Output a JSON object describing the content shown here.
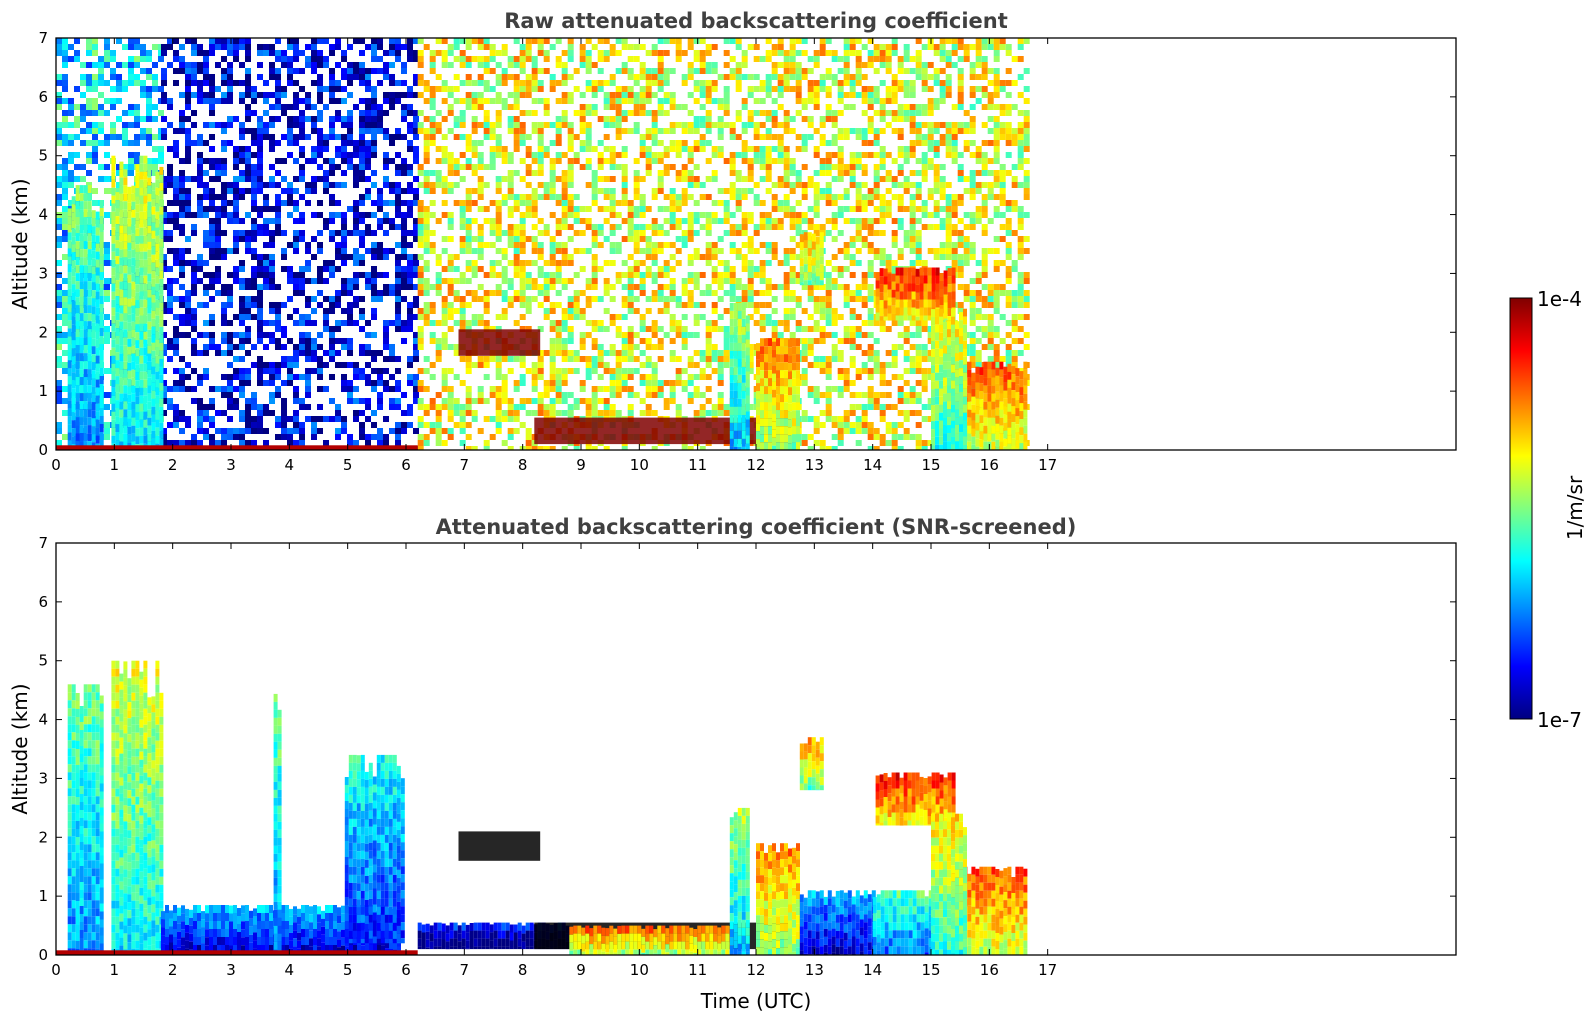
{
  "chart_data": [
    {
      "type": "heatmap",
      "title": "Raw attenuated backscattering coefficient",
      "xlabel": "",
      "ylabel": "Altitude (km)",
      "xlim": [
        0,
        24
      ],
      "ylim": [
        0,
        7
      ],
      "xticks": [
        "0",
        "1",
        "2",
        "3",
        "4",
        "5",
        "6",
        "7",
        "8",
        "9",
        "10",
        "11",
        "12",
        "13",
        "14",
        "15",
        "16",
        "17"
      ],
      "yticks": [
        "0",
        "1",
        "2",
        "3",
        "4",
        "5",
        "6",
        "7"
      ],
      "data_end_time": 16.6,
      "features": [
        {
          "kind": "noise_background",
          "x": [
            0,
            1.8
          ],
          "level": 0.35
        },
        {
          "kind": "noise_background",
          "x": [
            1.8,
            6.2
          ],
          "level": 0.1
        },
        {
          "kind": "noise_background",
          "x": [
            6.2,
            16.6
          ],
          "level": 0.6
        },
        {
          "kind": "aerosol_column",
          "x": [
            0.2,
            0.75
          ],
          "y": [
            0,
            4.5
          ],
          "level": 0.5
        },
        {
          "kind": "aerosol_column",
          "x": [
            0.95,
            1.8
          ],
          "y": [
            0,
            5
          ],
          "level": 0.6
        },
        {
          "kind": "boundary_layer",
          "x": [
            0,
            6.2
          ],
          "y": [
            0,
            0.08
          ],
          "level": 0.95
        },
        {
          "kind": "cloud_layer",
          "x": [
            6.9,
            8.3
          ],
          "y": [
            1.6,
            2.05
          ],
          "level": 1.0
        },
        {
          "kind": "cloud_layer",
          "x": [
            8.2,
            12.6
          ],
          "y": [
            0.1,
            0.55
          ],
          "level": 1.0
        },
        {
          "kind": "aerosol_column",
          "x": [
            11.55,
            11.85
          ],
          "y": [
            0,
            2.5
          ],
          "level": 0.55
        },
        {
          "kind": "aerosol_column",
          "x": [
            12.0,
            12.75
          ],
          "y": [
            0,
            1.9
          ],
          "level": 0.75
        },
        {
          "kind": "aerosol_column",
          "x": [
            12.75,
            13.1
          ],
          "y": [
            2.8,
            3.7
          ],
          "level": 0.7
        },
        {
          "kind": "aerosol_column",
          "x": [
            14.05,
            15.4
          ],
          "y": [
            2.2,
            3.1
          ],
          "level": 0.85
        },
        {
          "kind": "aerosol_column",
          "x": [
            15.35,
            16.6
          ],
          "y": [
            0,
            1.5
          ],
          "level": 0.8
        },
        {
          "kind": "aerosol_column",
          "x": [
            15.0,
            15.6
          ],
          "y": [
            0,
            2.4
          ],
          "level": 0.65
        }
      ]
    },
    {
      "type": "heatmap",
      "title": "Attenuated backscattering coefficient (SNR-screened)",
      "xlabel": "Time (UTC)",
      "ylabel": "Altitude (km)",
      "xlim": [
        0,
        24
      ],
      "ylim": [
        0,
        7
      ],
      "xticks": [
        "0",
        "1",
        "2",
        "3",
        "4",
        "5",
        "6",
        "7",
        "8",
        "9",
        "10",
        "11",
        "12",
        "13",
        "14",
        "15",
        "16",
        "17"
      ],
      "yticks": [
        "0",
        "1",
        "2",
        "3",
        "4",
        "5",
        "6",
        "7"
      ],
      "data_end_time": 16.6,
      "features": [
        {
          "kind": "aerosol_column",
          "x": [
            0.2,
            0.75
          ],
          "y": [
            0,
            4.6
          ],
          "level": 0.5
        },
        {
          "kind": "aerosol_column",
          "x": [
            0.95,
            1.8
          ],
          "y": [
            0,
            5
          ],
          "level": 0.6
        },
        {
          "kind": "aerosol_column",
          "x": [
            1.8,
            5.9
          ],
          "y": [
            0,
            0.85
          ],
          "level": 0.3
        },
        {
          "kind": "aerosol_column",
          "x": [
            3.73,
            3.8
          ],
          "y": [
            0,
            4.5
          ],
          "level": 0.5
        },
        {
          "kind": "aerosol_column",
          "x": [
            4.95,
            5.95
          ],
          "y": [
            0.2,
            3.4
          ],
          "level": 0.4
        },
        {
          "kind": "boundary_layer",
          "x": [
            0,
            6.2
          ],
          "y": [
            0,
            0.08
          ],
          "level": 0.95
        },
        {
          "kind": "cloud_layer",
          "x": [
            6.9,
            8.3
          ],
          "y": [
            1.6,
            2.1
          ],
          "level": 1.0
        },
        {
          "kind": "aerosol_column",
          "x": [
            6.2,
            8.8
          ],
          "y": [
            0.1,
            0.55
          ],
          "level": 0.15
        },
        {
          "kind": "cloud_layer",
          "x": [
            8.2,
            12.6
          ],
          "y": [
            0.1,
            0.55
          ],
          "level": 1.0
        },
        {
          "kind": "aerosol_column",
          "x": [
            8.8,
            11.6
          ],
          "y": [
            0,
            0.5
          ],
          "level": 0.75
        },
        {
          "kind": "aerosol_column",
          "x": [
            11.55,
            11.85
          ],
          "y": [
            0,
            2.5
          ],
          "level": 0.55
        },
        {
          "kind": "aerosol_column",
          "x": [
            12.0,
            12.75
          ],
          "y": [
            0,
            1.9
          ],
          "level": 0.75
        },
        {
          "kind": "aerosol_column",
          "x": [
            12.75,
            13.1
          ],
          "y": [
            2.8,
            3.7
          ],
          "level": 0.7
        },
        {
          "kind": "aerosol_column",
          "x": [
            12.75,
            14.0
          ],
          "y": [
            0,
            1.1
          ],
          "level": 0.3
        },
        {
          "kind": "aerosol_column",
          "x": [
            14.05,
            15.4
          ],
          "y": [
            2.2,
            3.1
          ],
          "level": 0.85
        },
        {
          "kind": "aerosol_column",
          "x": [
            14.0,
            15.0
          ],
          "y": [
            0,
            1.1
          ],
          "level": 0.45
        },
        {
          "kind": "aerosol_column",
          "x": [
            15.35,
            16.6
          ],
          "y": [
            0,
            1.5
          ],
          "level": 0.8
        },
        {
          "kind": "aerosol_column",
          "x": [
            15.0,
            15.6
          ],
          "y": [
            0,
            2.4
          ],
          "level": 0.65
        }
      ]
    }
  ],
  "colorbar": {
    "max_label": "1e-4",
    "min_label": "1e-7",
    "unit": "1/m/sr",
    "colormap": [
      "#000080",
      "#0000ff",
      "#0080ff",
      "#00ffff",
      "#80ff80",
      "#ffff00",
      "#ff8000",
      "#ff0000",
      "#800000"
    ]
  }
}
